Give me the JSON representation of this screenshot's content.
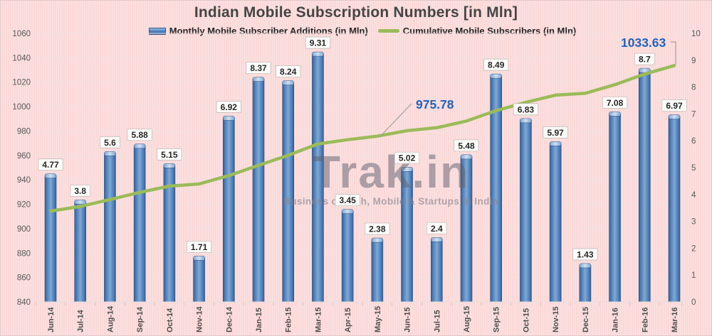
{
  "title": "Indian Mobile Subscription Numbers [in Mln]",
  "legend": {
    "items": [
      {
        "label": "Monthly Mobile Subscriber Additions (in Mln)",
        "marker": "bar-swatch",
        "color": "#4f81bd"
      },
      {
        "label": "Cumulative Mobile Subscribers (in Mln)",
        "marker": "line-swatch",
        "color": "#9bbb59"
      }
    ]
  },
  "watermark": {
    "brand": "Trak.in",
    "tagline": "Business of Tech, Mobile & Startups in India"
  },
  "chart_data": {
    "type": "bar",
    "combo": "bar+line",
    "title": "Indian Mobile Subscription Numbers [in Mln]",
    "grid": true,
    "legend_position": "top",
    "categories": [
      "Jun-14",
      "Jul-14",
      "Aug-14",
      "Sep-14",
      "Oct-14",
      "Nov-14",
      "Dec-14",
      "Jan-15",
      "Feb-15",
      "Mar-15",
      "Apr-15",
      "May-15",
      "Jun-15",
      "Jul-15",
      "Aug-15",
      "Sep-15",
      "Oct-15",
      "Nov-15",
      "Dec-15",
      "Jan-16",
      "Feb-16",
      "Mar-16"
    ],
    "series": [
      {
        "name": "Monthly Mobile Subscriber Additions (in Mln)",
        "type": "bar",
        "axis": "right",
        "color": "#4f81bd",
        "values": [
          4.77,
          3.8,
          5.6,
          5.88,
          5.15,
          1.71,
          6.92,
          8.37,
          8.24,
          9.31,
          3.45,
          2.38,
          5.02,
          2.4,
          5.48,
          8.49,
          6.83,
          5.97,
          1.43,
          7.08,
          8.7,
          6.97
        ],
        "data_labels": [
          "4.77",
          "3.8",
          "5.6",
          "5.88",
          "5.15",
          "1.71",
          "6.92",
          "8.37",
          "8.24",
          "9.31",
          "3.45",
          "2.38",
          "5.02",
          "2.4",
          "5.48",
          "8.49",
          "6.83",
          "5.97",
          "1.43",
          "7.08",
          "8.7",
          "6.97"
        ]
      },
      {
        "name": "Cumulative Mobile Subscribers (in Mln)",
        "type": "line",
        "axis": "left",
        "color": "#9bbb59",
        "estimated": true,
        "values": [
          914.45,
          918.25,
          923.85,
          929.73,
          934.88,
          936.59,
          943.51,
          951.88,
          960.12,
          969.43,
          972.88,
          975.78,
          980.28,
          982.68,
          988.16,
          996.65,
          1003.48,
          1009.45,
          1010.88,
          1017.96,
          1026.66,
          1033.63
        ]
      }
    ],
    "axes": {
      "left": {
        "min": 840,
        "max": 1060,
        "step": 20,
        "ticks": [
          "840",
          "860",
          "880",
          "900",
          "920",
          "940",
          "960",
          "980",
          "1000",
          "1020",
          "1040",
          "1060"
        ]
      },
      "right": {
        "min": 0,
        "max": 10,
        "step": 1,
        "ticks": [
          "0",
          "1",
          "2",
          "3",
          "4",
          "5",
          "6",
          "7",
          "8",
          "9",
          "10"
        ]
      }
    },
    "annotations": [
      {
        "text": "975.78",
        "category": "May-15",
        "series": "Cumulative Mobile Subscribers (in Mln)",
        "color": "#2263bd"
      },
      {
        "text": "1033.63",
        "category": "Mar-16",
        "series": "Cumulative Mobile Subscribers (in Mln)",
        "color": "#2263bd"
      }
    ]
  },
  "colors": {
    "background": "#fbd8d8",
    "gridline": "#f2e2e2",
    "axis_line": "#efdcdc",
    "tick_mark": "#dcc4c4",
    "axis_text": "#595959",
    "category_text": "#4d4d4d",
    "bar_fill": "#4f81bd",
    "bar_edge": "#28517f",
    "bar_cap": "#cfe0f2",
    "line": "#9bbb59",
    "data_label_text": "#262626",
    "data_label_box": "#fdfdfb",
    "data_label_border": "#c2beba",
    "annotation": "#2263bd",
    "leader_line": "#9f9f9f",
    "title_text": "#454545"
  }
}
